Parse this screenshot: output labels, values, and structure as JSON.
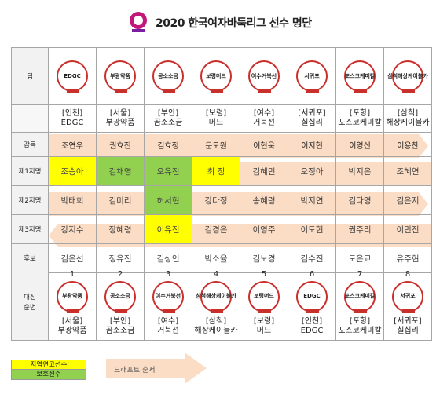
{
  "title": "2020 한국여자바둑리그 선수 명단",
  "row_labels": {
    "team": "팀",
    "coach": "감독",
    "p1": "제1지명",
    "p2": "제2지명",
    "p3": "제3지명",
    "reserve": "후보",
    "order": "대진\n순번"
  },
  "teams": [
    {
      "logo": "EDGC",
      "region": "[인천]",
      "name": "EDGC",
      "coach": "조연우",
      "p1": "조승아",
      "p2": "박태희",
      "p3": "강지수",
      "reserve": "김은선"
    },
    {
      "logo": "부광약품",
      "region": "[서울]",
      "name": "부광약품",
      "coach": "권효진",
      "p1": "김채영",
      "p2": "김미리",
      "p3": "장혜령",
      "reserve": "정유진"
    },
    {
      "logo": "공소소금",
      "region": "[부안]",
      "name": "곰소소금",
      "coach": "김효정",
      "p1": "오유진",
      "p2": "허서현",
      "p3": "이유진",
      "reserve": "김상인"
    },
    {
      "logo": "보령머드",
      "region": "[보령]",
      "name": "머드",
      "coach": "문도원",
      "p1": "최 정",
      "p2": "강다정",
      "p3": "김경은",
      "reserve": "박소율"
    },
    {
      "logo": "여수거북선",
      "region": "[여수]",
      "name": "거북선",
      "coach": "이현욱",
      "p1": "김혜민",
      "p2": "송혜령",
      "p3": "이영주",
      "reserve": "김노경"
    },
    {
      "logo": "서귀포",
      "region": "[서귀포]",
      "name": "칠십리",
      "coach": "이지현",
      "p1": "오정아",
      "p2": "박지연",
      "p3": "이도현",
      "reserve": "김수진"
    },
    {
      "logo": "포스코케미칼",
      "region": "[포항]",
      "name": "포스코케미칼",
      "coach": "이영신",
      "p1": "박지은",
      "p2": "김다영",
      "p3": "권주리",
      "reserve": "도은교"
    },
    {
      "logo": "삼척해상케이블카",
      "region": "[삼척]",
      "name": "해상케이블카",
      "coach": "이용찬",
      "p1": "조혜연",
      "p2": "김은지",
      "p3": "이민진",
      "reserve": "유주현"
    }
  ],
  "order": [
    {
      "num": "1",
      "logo": "부광약품",
      "region": "[서울]",
      "name": "부광약품"
    },
    {
      "num": "2",
      "logo": "공소소금",
      "region": "[부안]",
      "name": "곰소소금"
    },
    {
      "num": "3",
      "logo": "여수거북선",
      "region": "[여수]",
      "name": "거북선"
    },
    {
      "num": "4",
      "logo": "삼척해상케이블카",
      "region": "[삼척]",
      "name": "해상케이블카"
    },
    {
      "num": "5",
      "logo": "보령머드",
      "region": "[보령]",
      "name": "머드"
    },
    {
      "num": "6",
      "logo": "EDGC",
      "region": "[인천]",
      "name": "EDGC"
    },
    {
      "num": "7",
      "logo": "포스코케미칼",
      "region": "[포항]",
      "name": "포스코케미칼"
    },
    {
      "num": "8",
      "logo": "서귀포",
      "region": "[서귀포]",
      "name": "칠십리"
    }
  ],
  "legend": {
    "local": "지역연고선수",
    "protected": "보호선수",
    "draft": "드래프트 순서"
  },
  "colors": {
    "local": "#ffff00",
    "protected": "#92d050",
    "arrow": "#fbdcc4",
    "emblem": "#c9302c"
  }
}
